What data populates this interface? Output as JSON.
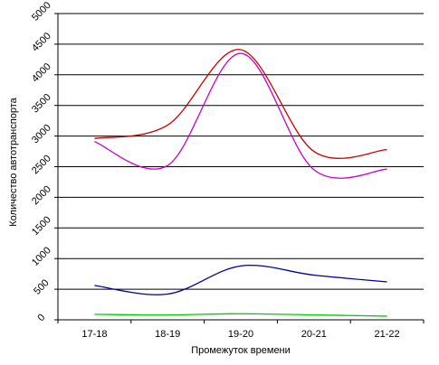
{
  "chart_data": {
    "type": "line",
    "title": "",
    "xlabel": "Промежуток времени",
    "ylabel": "Количество автотранспорта",
    "categories": [
      "17-18",
      "18-19",
      "19-20",
      "20-21",
      "21-22"
    ],
    "ylim": [
      0,
      5000
    ],
    "yticks": [
      "0",
      "500",
      "1000",
      "1500",
      "2000",
      "2500",
      "3000",
      "3500",
      "4000",
      "4500",
      "5000"
    ],
    "grid": true,
    "legend": "none",
    "series": [
      {
        "color": "#cc0000",
        "values": [
          2960,
          3180,
          4410,
          2750,
          2780
        ]
      },
      {
        "color": "#cc00cc",
        "values": [
          2910,
          2520,
          4350,
          2450,
          2460
        ]
      },
      {
        "color": "#000099",
        "values": [
          560,
          420,
          880,
          730,
          620
        ]
      },
      {
        "color": "#00cc00",
        "values": [
          90,
          80,
          100,
          80,
          60
        ]
      }
    ]
  }
}
